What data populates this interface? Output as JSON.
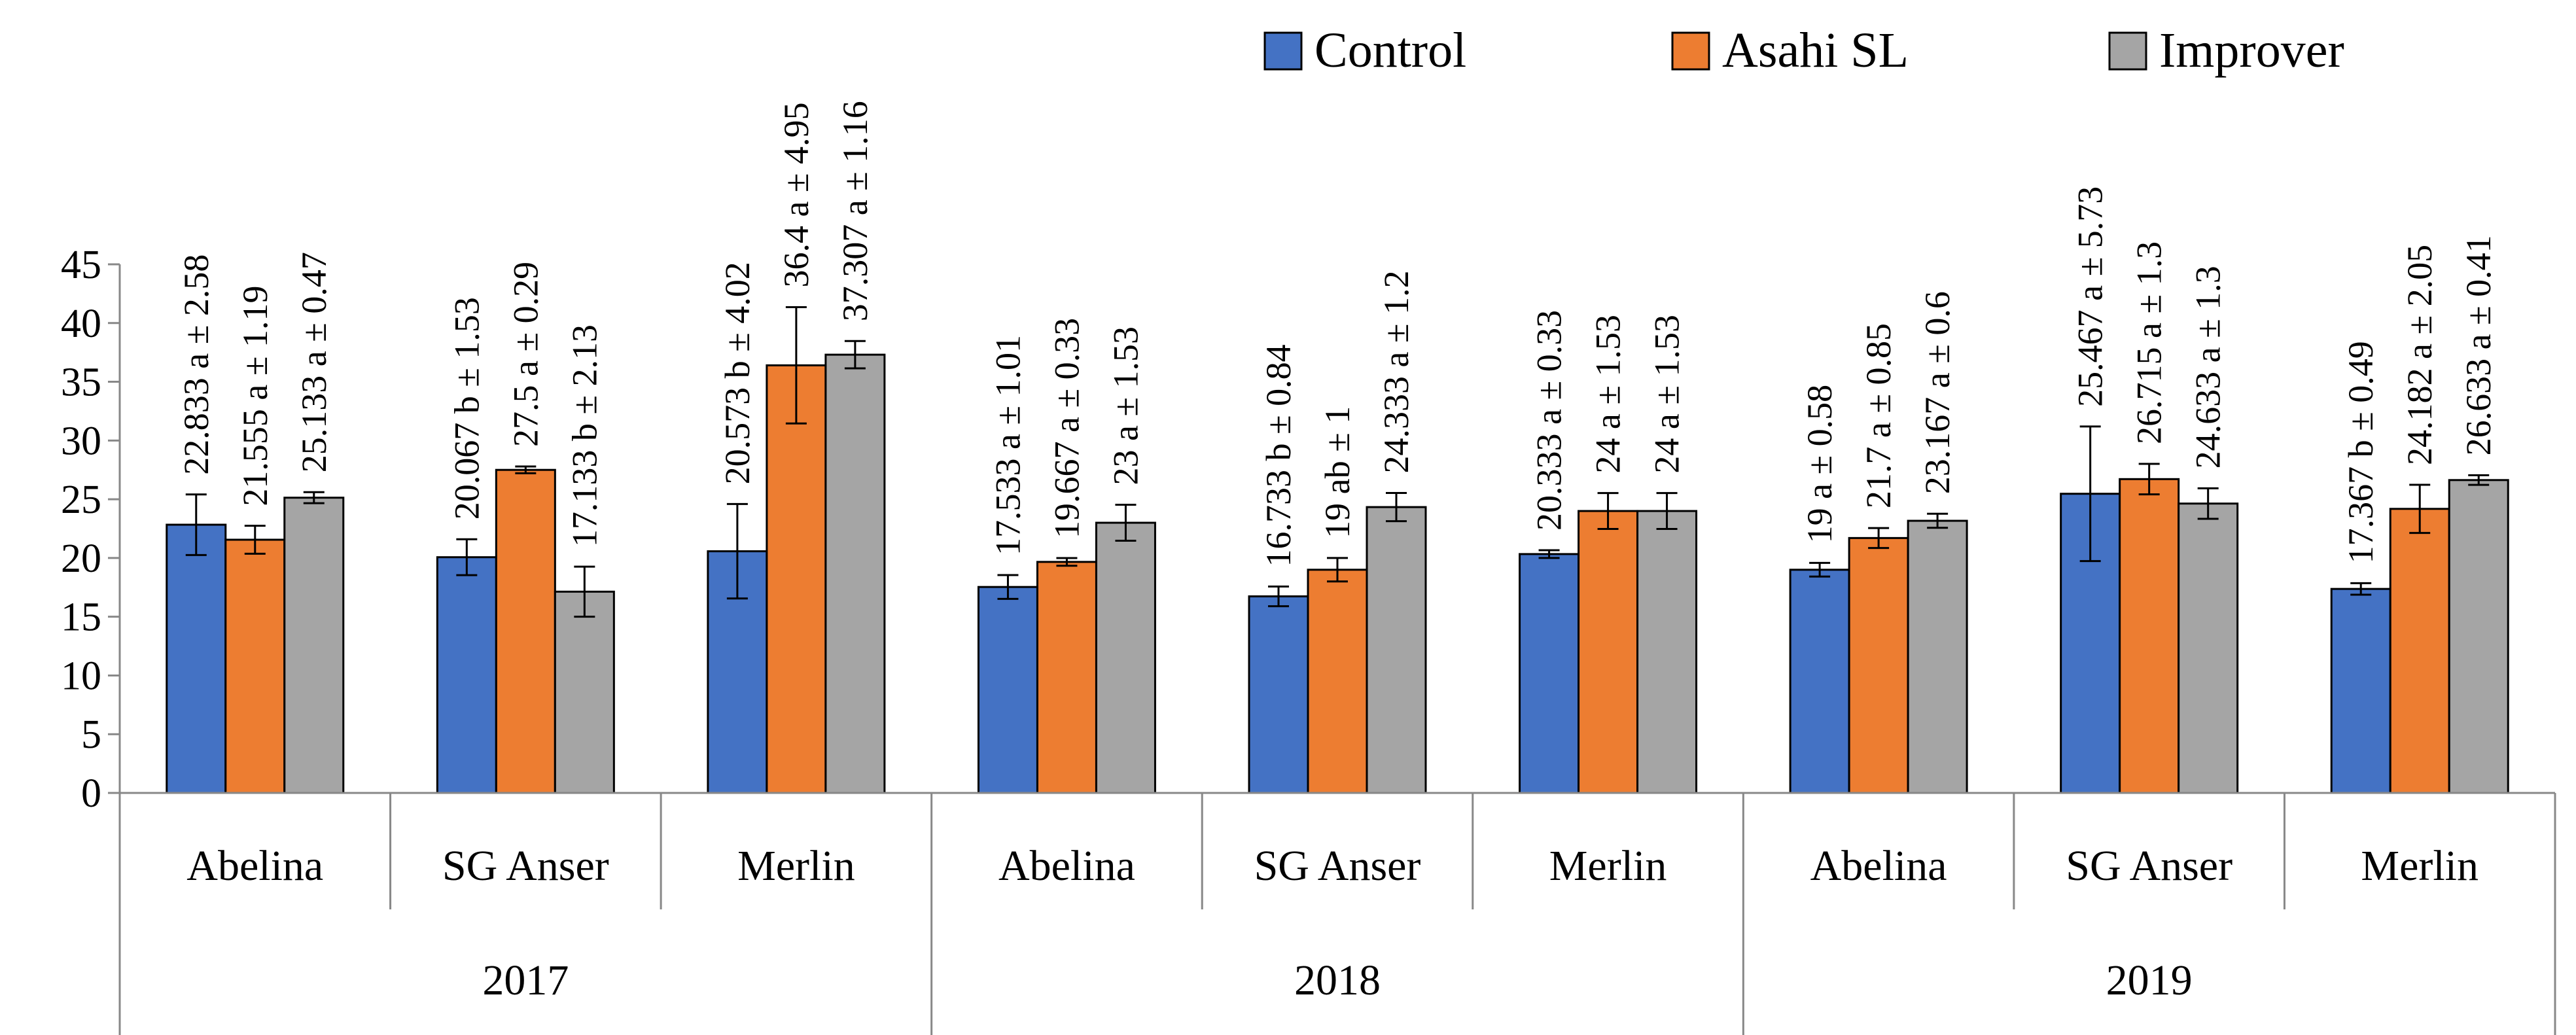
{
  "chart_data": {
    "type": "bar",
    "title": "",
    "xlabel": "",
    "ylabel": "",
    "ylim": [
      0,
      45
    ],
    "yticks": [
      0,
      5,
      10,
      15,
      20,
      25,
      30,
      35,
      40,
      45
    ],
    "groups": [
      {
        "year": "2017",
        "cultivars": [
          "Abelina",
          "SG Anser",
          "Merlin"
        ]
      },
      {
        "year": "2018",
        "cultivars": [
          "Abelina",
          "SG Anser",
          "Merlin"
        ]
      },
      {
        "year": "2019",
        "cultivars": [
          "Abelina",
          "SG Anser",
          "Merlin"
        ]
      }
    ],
    "categories": [
      "2017 Abelina",
      "2017 SG Anser",
      "2017 Merlin",
      "2018 Abelina",
      "2018 SG Anser",
      "2018 Merlin",
      "2019 Abelina",
      "2019 SG Anser",
      "2019 Merlin"
    ],
    "series": [
      {
        "name": "Control",
        "color": "#4472C4",
        "values": [
          22.833,
          20.067,
          20.573,
          17.533,
          16.733,
          20.333,
          19,
          25.467,
          17.367
        ],
        "errors": [
          2.58,
          1.53,
          4.02,
          1.01,
          0.84,
          0.33,
          0.58,
          5.73,
          0.49
        ],
        "labels": [
          "22.833 a ± 2.58",
          "20.067 b ± 1.53",
          "20.573 b ± 4.02",
          "17.533 a ± 1.01",
          "16.733 b ± 0.84",
          "20.333 a ± 0.33",
          "19 a ± 0.58",
          "25.467 a ± 5.73",
          "17.367 b ± 0.49"
        ]
      },
      {
        "name": "Asahi SL",
        "color": "#ED7D31",
        "values": [
          21.555,
          27.5,
          36.4,
          19.667,
          19,
          24,
          21.7,
          26.715,
          24.182
        ],
        "errors": [
          1.19,
          0.29,
          4.95,
          0.33,
          1,
          1.53,
          0.85,
          1.3,
          2.05
        ],
        "labels": [
          "21.555 a ± 1.19",
          "27.5 a ± 0.29",
          "36.4 a ± 4.95",
          "19.667 a ± 0.33",
          "19 ab ± 1",
          "24 a ± 1.53",
          "21.7 a ± 0.85",
          "26.715 a ± 1.3",
          "24.182 a ± 2.05"
        ]
      },
      {
        "name": "Improver",
        "color": "#A5A5A5",
        "values": [
          25.133,
          17.133,
          37.307,
          23,
          24.333,
          24,
          23.167,
          24.633,
          26.633
        ],
        "errors": [
          0.47,
          2.13,
          1.16,
          1.53,
          1.2,
          1.53,
          0.6,
          1.3,
          0.41
        ],
        "labels": [
          "25.133 a ± 0.47",
          "17.133 b ± 2.13",
          "37.307 a ± 1.16",
          "23 a ± 1.53",
          "24.333 a ± 1.2",
          "24 a ± 1.53",
          "23.167 a ± 0.6",
          "24.633 a ± 1.3",
          "26.633 a ± 0.41"
        ]
      }
    ],
    "legend": {
      "position": "top-right",
      "entries": [
        "Control",
        "Asahi SL",
        "Improver"
      ]
    }
  }
}
